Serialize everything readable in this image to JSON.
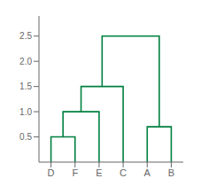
{
  "chart_data": {
    "type": "dendrogram",
    "categories": [
      "D",
      "F",
      "E",
      "C",
      "A",
      "B"
    ],
    "merges": [
      {
        "left": "D",
        "right": "F",
        "height": 0.5
      },
      {
        "left": 0,
        "right": "E",
        "height": 1.0
      },
      {
        "left": 1,
        "right": "C",
        "height": 1.5
      },
      {
        "left": "A",
        "right": "B",
        "height": 0.7
      },
      {
        "left": 2,
        "right": 3,
        "height": 2.5
      }
    ],
    "color": "#008040",
    "ylim": [
      0,
      2.9
    ],
    "yticks": [
      0.5,
      {
        "value": 1.0,
        "label": "1.0"
      },
      1.5,
      {
        "value": 2.0,
        "label": "2.0"
      },
      2.5
    ]
  }
}
